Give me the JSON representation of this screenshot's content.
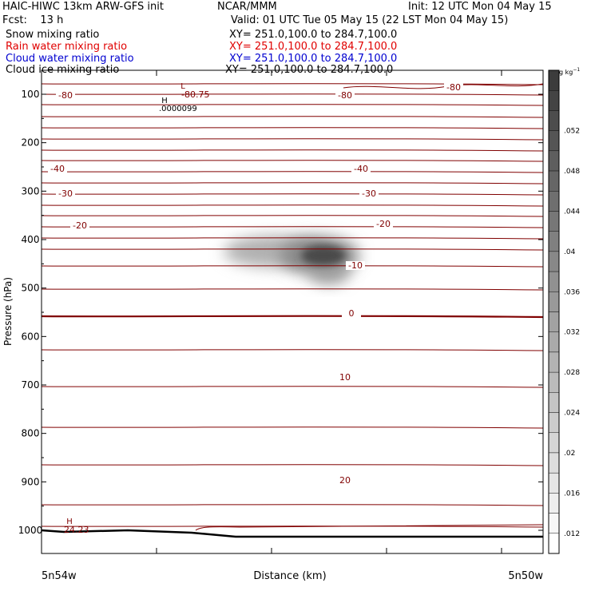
{
  "header": {
    "title_left": "HAIC-HIWC 13km ARW-GFS init",
    "title_center": "NCAR/MMM",
    "init": "Init: 12 UTC Mon 04 May 15",
    "fcst": "Fcst:    13 h",
    "valid": "Valid: 01 UTC Tue 05 May 15 (22 LST Mon 04 May 15)"
  },
  "fields": [
    {
      "name": "Snow mixing ratio",
      "xy": "XY= 251.0,100.0 to 284.7,100.0",
      "color": "#000000"
    },
    {
      "name": "Rain water mixing ratio",
      "xy": "XY= 251.0,100.0 to 284.7,100.0",
      "color": "#e00000"
    },
    {
      "name": "Cloud water mixing ratio",
      "xy": "XY= 251.0,100.0 to 284.7,100.0",
      "color": "#0000d0"
    },
    {
      "name": "Cloud ice mixing ratio",
      "xy": "XY= 251.0,100.0 to 284.7,100.0",
      "color": "#000000"
    }
  ],
  "chart_data": {
    "type": "contour",
    "ylabel": "Pressure (hPa)",
    "xlabel": "Distance (km)",
    "x_tick_labels": [
      "5n54w",
      "5n50w"
    ],
    "y_ticks": [
      100,
      200,
      300,
      400,
      500,
      600,
      700,
      800,
      900,
      1000
    ],
    "y_axis": "pressure, decreasing upward",
    "temperature_contours_degC": [
      {
        "label": "-80",
        "level": -80
      },
      {
        "label": "-40",
        "level": -40
      },
      {
        "label": "-30",
        "level": -30
      },
      {
        "label": "-20",
        "level": -20
      },
      {
        "label": "-10",
        "level": -10
      },
      {
        "label": "0",
        "level": 0
      },
      {
        "label": "10",
        "level": 10
      },
      {
        "label": "20",
        "level": 20
      }
    ],
    "extrema": [
      {
        "type": "L",
        "value": "-80.75"
      },
      {
        "type": "H",
        "value": ".0000099"
      },
      {
        "type": "H",
        "value": "24.23"
      }
    ],
    "shaded_field": {
      "name": "Snow mixing ratio",
      "max_approx": 0.044,
      "pressure_range_hPa": [
        380,
        490
      ],
      "center_pressure_hPa": 430
    },
    "colorbar": {
      "unit": "g kg",
      "unit_exp": "−1",
      "levels": [
        ".052",
        ".048",
        ".044",
        ".04",
        ".036",
        ".032",
        ".028",
        ".024",
        ".02",
        ".016",
        ".012"
      ]
    }
  }
}
